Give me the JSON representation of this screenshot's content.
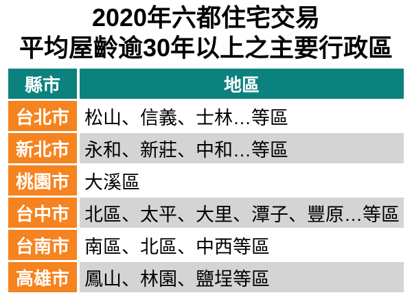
{
  "title": {
    "line1": "2020年六都住宅交易",
    "line2": "平均屋齡逾30年以上之主要行政區"
  },
  "table": {
    "headers": {
      "city": "縣市",
      "district": "地區"
    },
    "rows": [
      {
        "city": "台北市",
        "districts": "松山、信義、士林…等區"
      },
      {
        "city": "新北市",
        "districts": "永和、新莊、中和…等區"
      },
      {
        "city": "桃園市",
        "districts": "大溪區"
      },
      {
        "city": "台中市",
        "districts": "北區、太平、大里、潭子、豐原…等區"
      },
      {
        "city": "台南市",
        "districts": "南區、北區、中西等區"
      },
      {
        "city": "高雄市",
        "districts": "鳳山、林園、鹽埕等區"
      }
    ]
  },
  "colors": {
    "header_teal": "#0B827E",
    "city_orange": "#F5831F",
    "row_gray": "#D4D4D4",
    "row_white": "#FFFFFF",
    "title_text": "#000000",
    "header_text": "#FFFFFF"
  },
  "chart_data": {
    "type": "table",
    "title": "2020年六都住宅交易 平均屋齡逾30年以上之主要行政區",
    "columns": [
      "縣市",
      "地區"
    ],
    "rows": [
      [
        "台北市",
        "松山、信義、士林…等區"
      ],
      [
        "新北市",
        "永和、新莊、中和…等區"
      ],
      [
        "桃園市",
        "大溪區"
      ],
      [
        "台中市",
        "北區、太平、大里、潭子、豐原…等區"
      ],
      [
        "台南市",
        "南區、北區、中西等區"
      ],
      [
        "高雄市",
        "鳳山、林園、鹽埕等區"
      ]
    ]
  }
}
